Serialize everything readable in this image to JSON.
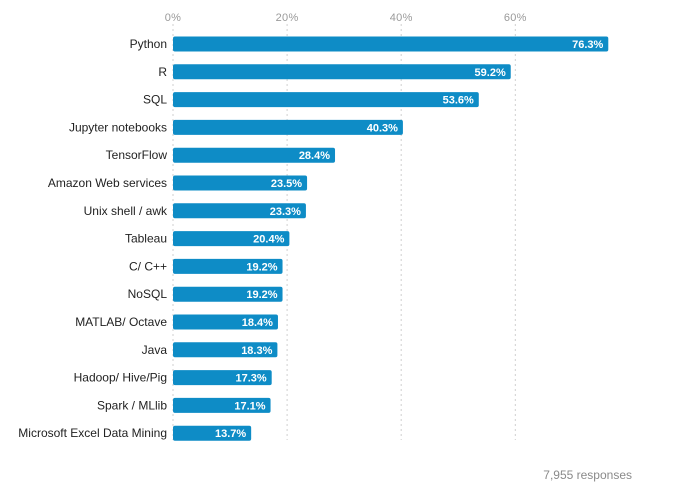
{
  "chart_data": {
    "type": "bar",
    "orientation": "horizontal",
    "title": "",
    "xlabel": "",
    "ylabel": "",
    "xlim": [
      0,
      80
    ],
    "tick_values": [
      0,
      20,
      40,
      60
    ],
    "tick_labels": [
      "0%",
      "20%",
      "40%",
      "60%"
    ],
    "categories": [
      "Python",
      "R",
      "SQL",
      "Jupyter notebooks",
      "TensorFlow",
      "Amazon Web services",
      "Unix shell / awk",
      "Tableau",
      "C/ C++",
      "NoSQL",
      "MATLAB/ Octave",
      "Java",
      "Hadoop/ Hive/Pig",
      "Spark / MLlib",
      "Microsoft Excel Data Mining"
    ],
    "values": [
      76.3,
      59.2,
      53.6,
      40.3,
      28.4,
      23.5,
      23.3,
      20.4,
      19.2,
      19.2,
      18.4,
      18.3,
      17.3,
      17.1,
      13.7
    ],
    "value_labels": [
      "76.3%",
      "59.2%",
      "53.6%",
      "40.3%",
      "28.4%",
      "23.5%",
      "23.3%",
      "20.4%",
      "19.2%",
      "19.2%",
      "18.4%",
      "18.3%",
      "17.3%",
      "17.1%",
      "13.7%"
    ],
    "grid": true,
    "legend": "none",
    "bar_color": "#0e8cc6",
    "grid_color": "#cfcfcf",
    "footer_note": "7,955 responses"
  }
}
